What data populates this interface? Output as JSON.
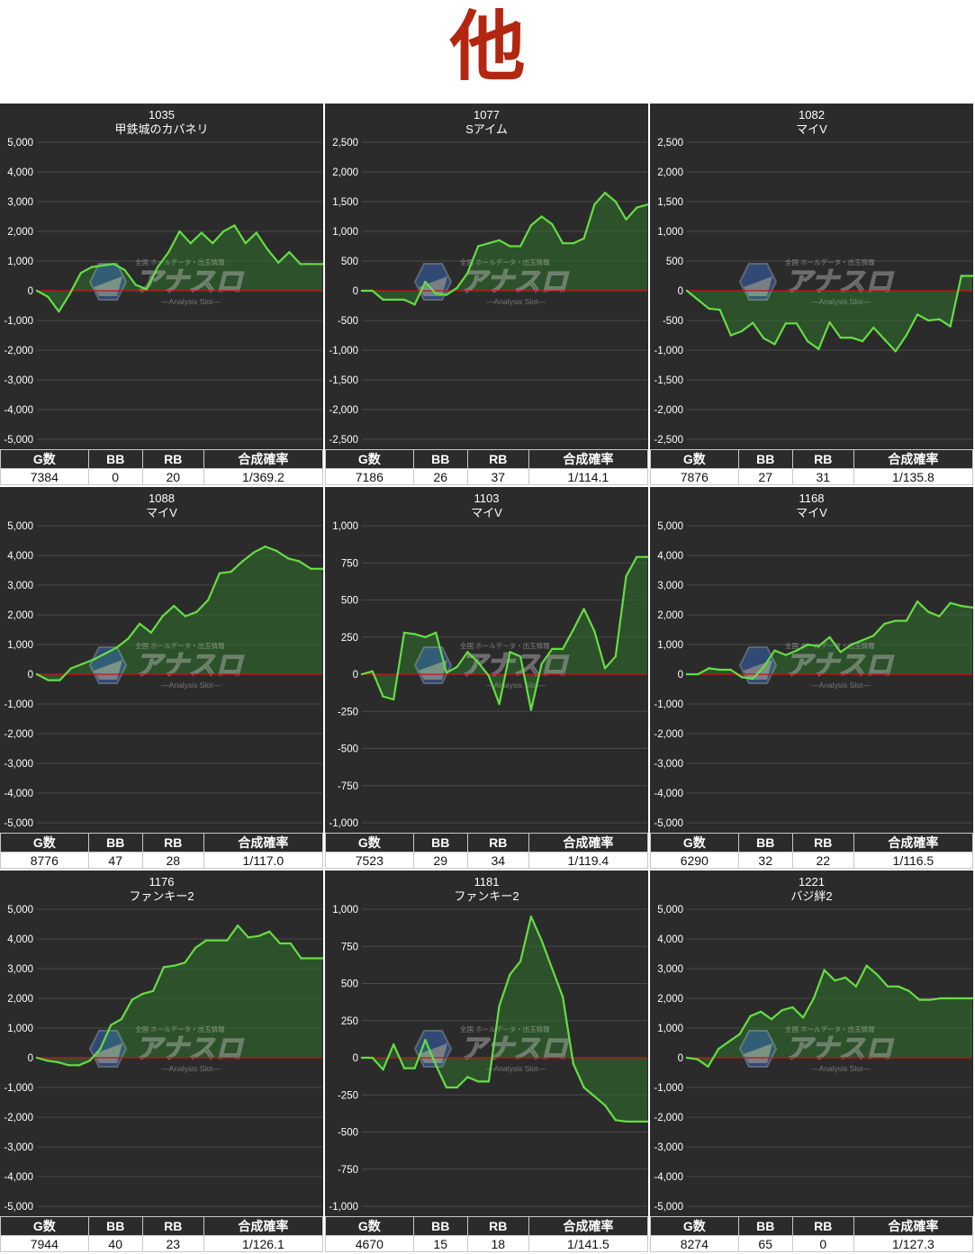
{
  "page": {
    "title": "他"
  },
  "watermark": {
    "top": "全国 ホールデータ・出玉情報",
    "main": "アナスロ",
    "sub": "―Analysis Slot―"
  },
  "table_headers": [
    "G数",
    "BB",
    "RB",
    "合成確率"
  ],
  "colors": {
    "line": "#66dd44",
    "fill": "#2e6b2c",
    "zero_line": "#d01010",
    "panel_bg": "#2b2b2b",
    "title": "#b3260f"
  },
  "chart_data": [
    {
      "type": "area",
      "machine_no": "1035",
      "machine_name": "甲鉄城のカバネリ",
      "ylim": [
        -5000,
        5000
      ],
      "yticks": [
        "5,000",
        "4,000",
        "3,000",
        "2,000",
        "1,000",
        "0",
        "-1,000",
        "-2,000",
        "-3,000",
        "-4,000",
        "-5,000"
      ],
      "y": [
        0,
        -200,
        -700,
        -100,
        600,
        800,
        850,
        900,
        700,
        200,
        50,
        800,
        1300,
        2000,
        1600,
        1950,
        1600,
        2000,
        2200,
        1600,
        1950,
        1400,
        950,
        1300,
        900,
        900,
        900
      ],
      "stats": {
        "games": "7384",
        "bb": "0",
        "rb": "20",
        "prob": "1/369.2"
      }
    },
    {
      "type": "area",
      "machine_no": "1077",
      "machine_name": "Sアイム",
      "ylim": [
        -2500,
        2500
      ],
      "yticks": [
        "2,500",
        "2,000",
        "1,500",
        "1,000",
        "500",
        "0",
        "-500",
        "-1,000",
        "-1,500",
        "-2,000",
        "-2,500"
      ],
      "y": [
        0,
        0,
        -150,
        -150,
        -150,
        -230,
        150,
        -50,
        -70,
        50,
        300,
        750,
        800,
        850,
        750,
        750,
        1100,
        1250,
        1120,
        800,
        800,
        880,
        1450,
        1650,
        1500,
        1200,
        1400,
        1450
      ],
      "stats": {
        "games": "7186",
        "bb": "26",
        "rb": "37",
        "prob": "1/114.1"
      }
    },
    {
      "type": "area",
      "machine_no": "1082",
      "machine_name": "マイV",
      "ylim": [
        -2500,
        2500
      ],
      "yticks": [
        "2,500",
        "2,000",
        "1,500",
        "1,000",
        "500",
        "0",
        "-500",
        "-1,000",
        "-1,500",
        "-2,000",
        "-2,500"
      ],
      "y": [
        0,
        -150,
        -300,
        -320,
        -750,
        -680,
        -540,
        -800,
        -900,
        -550,
        -550,
        -850,
        -980,
        -530,
        -790,
        -790,
        -850,
        -620,
        -820,
        -1020,
        -750,
        -400,
        -500,
        -480,
        -600,
        250,
        250
      ],
      "stats": {
        "games": "7876",
        "bb": "27",
        "rb": "31",
        "prob": "1/135.8"
      }
    },
    {
      "type": "area",
      "machine_no": "1088",
      "machine_name": "マイV",
      "ylim": [
        -5000,
        5000
      ],
      "yticks": [
        "5,000",
        "4,000",
        "3,000",
        "2,000",
        "1,000",
        "0",
        "-1,000",
        "-2,000",
        "-3,000",
        "-4,000",
        "-5,000"
      ],
      "y": [
        0,
        -200,
        -200,
        200,
        350,
        500,
        700,
        900,
        1200,
        1700,
        1400,
        1950,
        2300,
        1950,
        2100,
        2500,
        3400,
        3450,
        3800,
        4100,
        4300,
        4150,
        3900,
        3800,
        3550,
        3550
      ],
      "stats": {
        "games": "8776",
        "bb": "47",
        "rb": "28",
        "prob": "1/117.0"
      }
    },
    {
      "type": "area",
      "machine_no": "1103",
      "machine_name": "マイV",
      "ylim": [
        -1000,
        1000
      ],
      "yticks": [
        "1,000",
        "750",
        "500",
        "250",
        "0",
        "-250",
        "-500",
        "-750",
        "-1,000"
      ],
      "y": [
        0,
        20,
        -150,
        -170,
        280,
        270,
        250,
        280,
        10,
        50,
        150,
        80,
        -10,
        -200,
        150,
        120,
        -240,
        70,
        170,
        170,
        300,
        440,
        290,
        40,
        120,
        660,
        790,
        790
      ],
      "stats": {
        "games": "7523",
        "bb": "29",
        "rb": "34",
        "prob": "1/119.4"
      }
    },
    {
      "type": "area",
      "machine_no": "1168",
      "machine_name": "マイV",
      "ylim": [
        -5000,
        5000
      ],
      "yticks": [
        "5,000",
        "4,000",
        "3,000",
        "2,000",
        "1,000",
        "0",
        "-1,000",
        "-2,000",
        "-3,000",
        "-4,000",
        "-5,000"
      ],
      "y": [
        0,
        0,
        200,
        150,
        150,
        -100,
        -150,
        250,
        800,
        650,
        800,
        1000,
        950,
        1250,
        750,
        1000,
        1150,
        1300,
        1700,
        1800,
        1800,
        2450,
        2100,
        1950,
        2400,
        2300,
        2250
      ],
      "stats": {
        "games": "6290",
        "bb": "32",
        "rb": "22",
        "prob": "1/116.5"
      }
    },
    {
      "type": "area",
      "machine_no": "1176",
      "machine_name": "ファンキー2",
      "ylim": [
        -5000,
        5000
      ],
      "yticks": [
        "5,000",
        "4,000",
        "3,000",
        "2,000",
        "1,000",
        "0",
        "-1,000",
        "-2,000",
        "-3,000",
        "-4,000",
        "-5,000"
      ],
      "y": [
        0,
        -100,
        -150,
        -250,
        -250,
        -100,
        300,
        1100,
        1300,
        1950,
        2150,
        2250,
        3050,
        3100,
        3200,
        3700,
        3950,
        3950,
        3950,
        4450,
        4050,
        4100,
        4250,
        3850,
        3850,
        3350,
        3350,
        3350
      ],
      "stats": {
        "games": "7944",
        "bb": "40",
        "rb": "23",
        "prob": "1/126.1"
      }
    },
    {
      "type": "area",
      "machine_no": "1181",
      "machine_name": "ファンキー2",
      "ylim": [
        -1000,
        1000
      ],
      "yticks": [
        "1,000",
        "750",
        "500",
        "250",
        "0",
        "-250",
        "-500",
        "-750",
        "-1,000"
      ],
      "y": [
        0,
        0,
        -80,
        90,
        -70,
        -70,
        120,
        -50,
        -200,
        -200,
        -130,
        -160,
        -160,
        350,
        560,
        650,
        950,
        790,
        600,
        410,
        -40,
        -200,
        -260,
        -320,
        -420,
        -430,
        -430,
        -430
      ],
      "stats": {
        "games": "4670",
        "bb": "15",
        "rb": "18",
        "prob": "1/141.5"
      }
    },
    {
      "type": "area",
      "machine_no": "1221",
      "machine_name": "バジ絆2",
      "ylim": [
        -5000,
        5000
      ],
      "yticks": [
        "5,000",
        "4,000",
        "3,000",
        "2,000",
        "1,000",
        "0",
        "-1,000",
        "-2,000",
        "-3,000",
        "-4,000",
        "-5,000"
      ],
      "y": [
        0,
        -50,
        -300,
        300,
        550,
        800,
        1400,
        1550,
        1300,
        1600,
        1700,
        1350,
        2000,
        2950,
        2600,
        2700,
        2400,
        3100,
        2800,
        2400,
        2400,
        2250,
        1950,
        1950,
        2000,
        2000,
        2000,
        2000
      ],
      "stats": {
        "games": "8274",
        "bb": "65",
        "rb": "0",
        "prob": "1/127.3"
      }
    }
  ]
}
